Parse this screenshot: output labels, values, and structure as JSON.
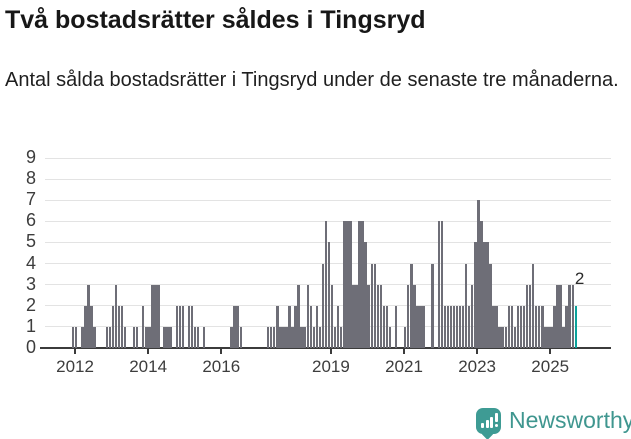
{
  "header": {
    "title": "Två bostadsrätter såldes i Tingsryd",
    "subtitle": "Antal sålda bostadsrätter i Tingsryd under de senaste tre månaderna."
  },
  "chart_data": {
    "type": "bar",
    "title": "Två bostadsrätter såldes i Tingsryd",
    "subtitle": "Antal sålda bostadsrätter i Tingsryd under de senaste tre månaderna.",
    "x_start_month": "2011-12",
    "x_end_month": "2025-09",
    "ylim": [
      0,
      9
    ],
    "yticks": [
      0,
      1,
      2,
      3,
      4,
      5,
      6,
      7,
      8,
      9
    ],
    "xtick_labels": [
      "2012",
      "2014",
      "2016",
      "2019",
      "2021",
      "2023",
      "2025"
    ],
    "xtick_month_index": [
      1,
      25,
      49,
      85,
      109,
      133,
      157
    ],
    "grid": "horizontal",
    "bar_color": "#6E6E77",
    "highlight_color": "#0BA29B",
    "highlight": {
      "index": 165,
      "month": "2025-09",
      "value": 2,
      "label": "2"
    },
    "values": [
      1,
      1,
      0,
      1,
      2,
      3,
      2,
      1,
      0,
      0,
      0,
      1,
      1,
      2,
      3,
      2,
      2,
      1,
      0,
      0,
      1,
      1,
      0,
      2,
      1,
      1,
      3,
      3,
      3,
      0,
      1,
      1,
      1,
      0,
      2,
      2,
      2,
      0,
      2,
      2,
      1,
      1,
      0,
      1,
      0,
      0,
      0,
      0,
      0,
      0,
      0,
      0,
      1,
      2,
      2,
      1,
      0,
      0,
      0,
      0,
      0,
      0,
      0,
      0,
      1,
      1,
      1,
      2,
      1,
      1,
      1,
      2,
      1,
      2,
      3,
      1,
      1,
      3,
      2,
      1,
      2,
      1,
      4,
      6,
      5,
      3,
      1,
      2,
      1,
      6,
      6,
      6,
      3,
      3,
      6,
      6,
      5,
      3,
      4,
      4,
      3,
      3,
      2,
      2,
      1,
      0,
      2,
      0,
      0,
      1,
      3,
      4,
      3,
      2,
      2,
      2,
      0,
      0,
      4,
      0,
      6,
      6,
      2,
      2,
      2,
      2,
      2,
      2,
      2,
      4,
      2,
      3,
      5,
      7,
      6,
      5,
      5,
      4,
      2,
      2,
      1,
      1,
      1,
      2,
      2,
      1,
      2,
      2,
      2,
      3,
      3,
      4,
      2,
      2,
      2,
      1,
      1,
      1,
      2,
      3,
      3,
      1,
      2,
      3,
      3,
      2
    ]
  },
  "footer": {
    "brand": "Newsworthy",
    "brand_color": "#3F968F",
    "logo_icon": "speech-bubble-bar-chart"
  }
}
